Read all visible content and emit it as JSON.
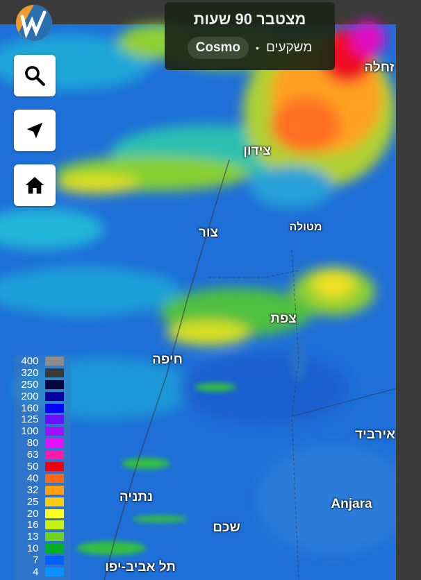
{
  "header": {
    "title": "מצטבר 90 שעות",
    "layer": "משקעים",
    "model": "Cosmo",
    "separator": "•"
  },
  "controls": {
    "search_icon": "search-icon",
    "locate_icon": "navigation-arrow-icon",
    "home_icon": "home-icon"
  },
  "places": [
    {
      "name": "זחלה"
    },
    {
      "name": "צידון"
    },
    {
      "name": "צור"
    },
    {
      "name": "מטולה"
    },
    {
      "name": "צפת"
    },
    {
      "name": "חיפה"
    },
    {
      "name": "אירביד"
    },
    {
      "name": "נתניה"
    },
    {
      "name": "Anjara"
    },
    {
      "name": "שכם"
    },
    {
      "name": "תל אביב-יפו"
    }
  ],
  "legend": [
    {
      "value": "400",
      "color": "#8c8c8c"
    },
    {
      "value": "320",
      "color": "#3a3a3a"
    },
    {
      "value": "250",
      "color": "#05053e"
    },
    {
      "value": "200",
      "color": "#0000a0"
    },
    {
      "value": "160",
      "color": "#0000ff"
    },
    {
      "value": "125",
      "color": "#6a10ff"
    },
    {
      "value": "100",
      "color": "#a010ff"
    },
    {
      "value": "80",
      "color": "#e010ff"
    },
    {
      "value": "63",
      "color": "#ff1aa8"
    },
    {
      "value": "50",
      "color": "#ee0010"
    },
    {
      "value": "40",
      "color": "#ff6a10"
    },
    {
      "value": "32",
      "color": "#ffa010"
    },
    {
      "value": "25",
      "color": "#ffcc10"
    },
    {
      "value": "20",
      "color": "#ffff20"
    },
    {
      "value": "16",
      "color": "#c8f010"
    },
    {
      "value": "13",
      "color": "#70d020"
    },
    {
      "value": "10",
      "color": "#00b020"
    },
    {
      "value": "7",
      "color": "#0060ff"
    },
    {
      "value": "4",
      "color": "#0a90ff"
    }
  ]
}
